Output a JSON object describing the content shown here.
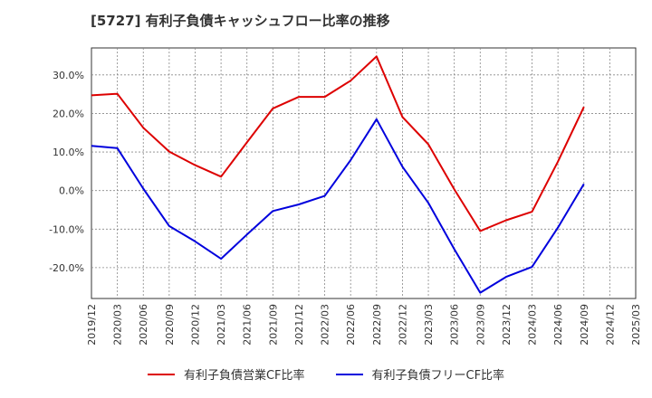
{
  "chart_data": {
    "type": "line",
    "title": "[5727]  有利子負債キャッシュフロー比率の推移",
    "xlabel": "",
    "ylabel": "",
    "x": [
      "2019/12",
      "2020/03",
      "2020/06",
      "2020/09",
      "2020/12",
      "2021/03",
      "2021/06",
      "2021/09",
      "2021/12",
      "2022/03",
      "2022/06",
      "2022/09",
      "2022/12",
      "2023/03",
      "2023/06",
      "2023/09",
      "2023/12",
      "2024/03",
      "2024/06",
      "2024/09",
      "2024/12",
      "2025/03"
    ],
    "ylim": [
      -28.0,
      37.0
    ],
    "yticks": [
      -20,
      -10,
      0,
      10,
      20,
      30
    ],
    "ytick_labels": [
      "-20.0%",
      "-10.0%",
      "0.0%",
      "10.0%",
      "20.0%",
      "30.0%"
    ],
    "grid": true,
    "legend_position": "bottom",
    "series": [
      {
        "name": "有利子負債営業CF比率",
        "color": "#dd0000",
        "values": [
          24.7,
          25.1,
          16.3,
          10.1,
          6.6,
          3.6,
          12.5,
          21.3,
          24.3,
          24.3,
          28.5,
          34.8,
          19.1,
          12.0,
          0.3,
          -10.5,
          -7.7,
          -5.5,
          7.5,
          21.7,
          null,
          null
        ]
      },
      {
        "name": "有利子負債フリーCF比率",
        "color": "#0000dd",
        "values": [
          11.6,
          11.0,
          0.5,
          -9.2,
          -13.2,
          -17.7,
          -11.4,
          -5.3,
          -3.6,
          -1.4,
          7.9,
          18.5,
          6.2,
          -3.2,
          -15.2,
          -26.5,
          -22.4,
          -19.8,
          -9.6,
          1.7,
          null,
          null
        ]
      }
    ]
  }
}
